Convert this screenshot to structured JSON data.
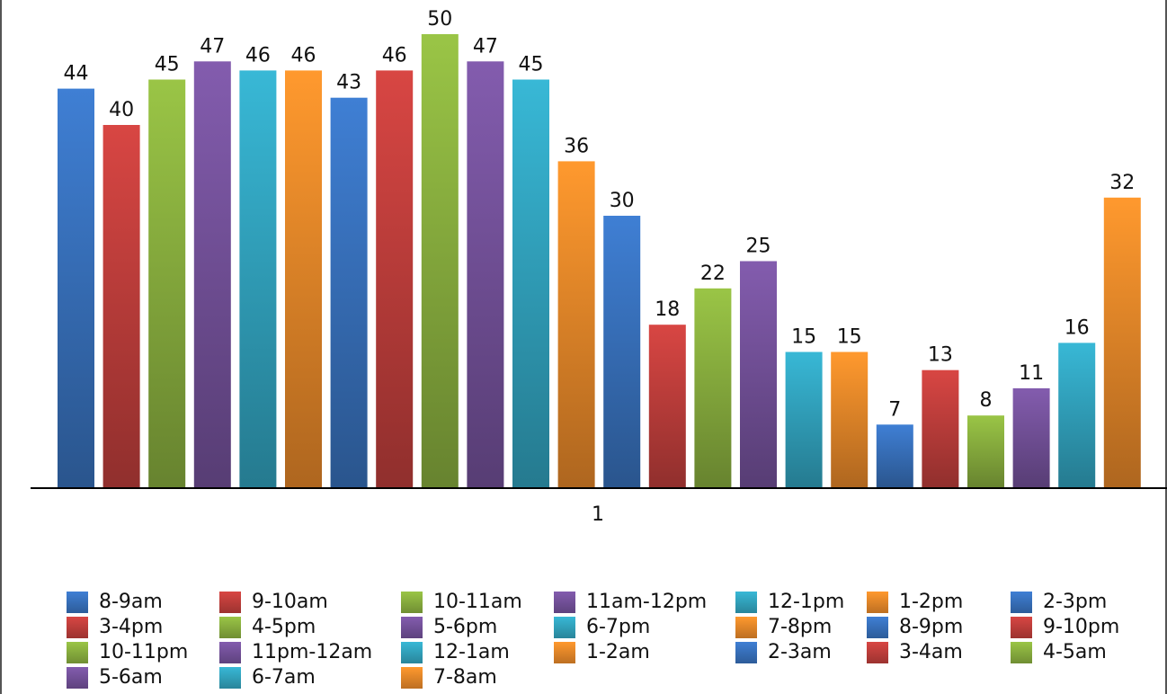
{
  "chart_data": {
    "type": "bar",
    "title": "",
    "xlabel": "",
    "ylabel": "",
    "categories": [
      "1"
    ],
    "ylim": [
      0,
      50
    ],
    "grid": false,
    "legend_position": "bottom",
    "series": [
      {
        "name": "8-9am",
        "value": 44,
        "color": "#3a76c4"
      },
      {
        "name": "9-10am",
        "value": 40,
        "color": "#c8413e"
      },
      {
        "name": "10-11am",
        "value": 45,
        "color": "#8fb641"
      },
      {
        "name": "11am-12pm",
        "value": 47,
        "color": "#7955a1"
      },
      {
        "name": "12-1pm",
        "value": 46,
        "color": "#34aac6"
      },
      {
        "name": "1-2pm",
        "value": 46,
        "color": "#f28e2b"
      },
      {
        "name": "2-3pm",
        "value": 43,
        "color": "#3a76c4"
      },
      {
        "name": "3-4pm",
        "value": 46,
        "color": "#c8413e"
      },
      {
        "name": "4-5pm",
        "value": 50,
        "color": "#8fb641"
      },
      {
        "name": "5-6pm",
        "value": 47,
        "color": "#7955a1"
      },
      {
        "name": "6-7pm",
        "value": 45,
        "color": "#34aac6"
      },
      {
        "name": "7-8pm",
        "value": 36,
        "color": "#f28e2b"
      },
      {
        "name": "8-9pm",
        "value": 30,
        "color": "#3a76c4"
      },
      {
        "name": "9-10pm",
        "value": 18,
        "color": "#c8413e"
      },
      {
        "name": "10-11pm",
        "value": 22,
        "color": "#8fb641"
      },
      {
        "name": "11pm-12am",
        "value": 25,
        "color": "#7955a1"
      },
      {
        "name": "12-1am",
        "value": 15,
        "color": "#34aac6"
      },
      {
        "name": "1-2am",
        "value": 15,
        "color": "#f28e2b"
      },
      {
        "name": "2-3am",
        "value": 7,
        "color": "#3a76c4"
      },
      {
        "name": "3-4am",
        "value": 13,
        "color": "#c8413e"
      },
      {
        "name": "4-5am",
        "value": 8,
        "color": "#8fb641"
      },
      {
        "name": "5-6am",
        "value": 11,
        "color": "#7955a1"
      },
      {
        "name": "6-7am",
        "value": 16,
        "color": "#34aac6"
      },
      {
        "name": "7-8am",
        "value": 32,
        "color": "#f28e2b"
      }
    ]
  }
}
